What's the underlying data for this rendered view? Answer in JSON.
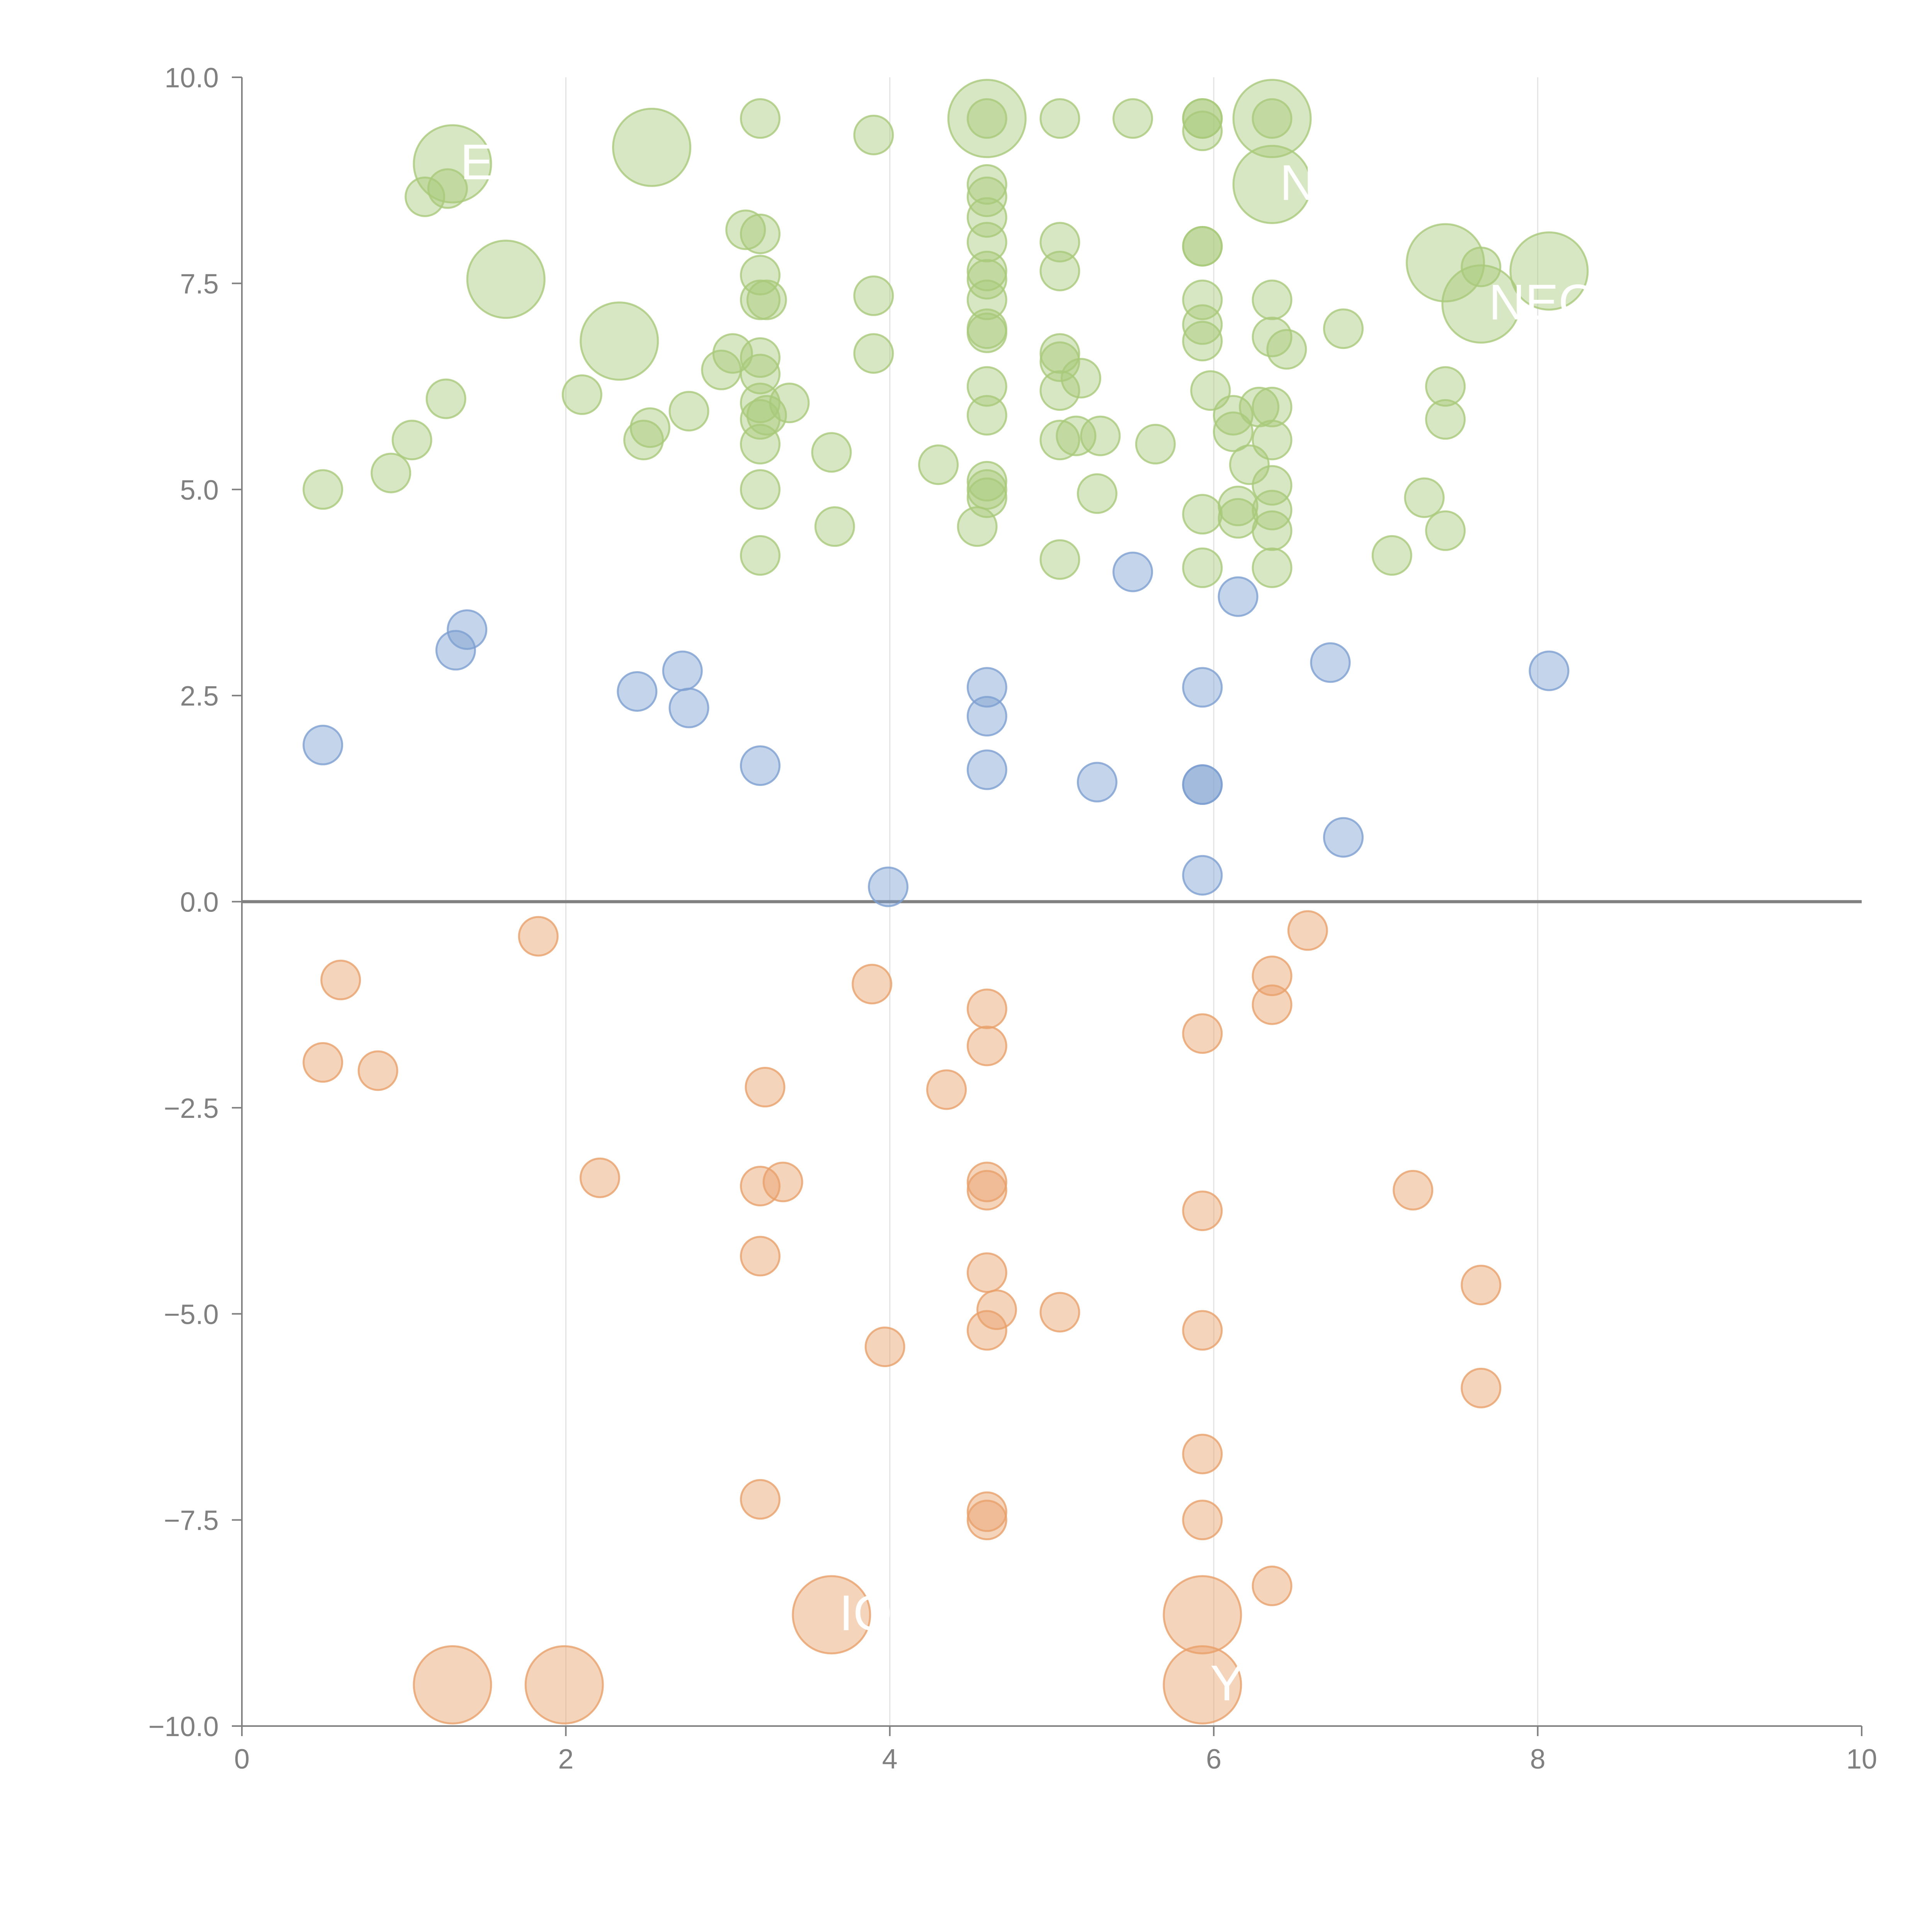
{
  "chart_data": {
    "type": "scatter",
    "title": "",
    "xlabel": "",
    "ylabel": "",
    "xlim": [
      0,
      10
    ],
    "ylim": [
      -10,
      10
    ],
    "x_ticks": [
      "0",
      "2",
      "4",
      "6",
      "8",
      "10"
    ],
    "y_ticks": [
      "−10.0",
      "−7.5",
      "−5.0",
      "−2.5",
      "0.0",
      "2.5",
      "5.0",
      "7.5",
      "10.0"
    ],
    "grid": "vertical gridlines at x ticks",
    "zero_line": true,
    "legend": "none",
    "colors": {
      "high": "#a9c97a",
      "mid": "#7d9fd1",
      "low": "#e8a06a",
      "axis": "#808080",
      "grid": "#e3e3e3",
      "zero_line": "#808080"
    },
    "series": [
      {
        "group": "high",
        "points": [
          {
            "x": 0.5,
            "y": 5.0
          },
          {
            "x": 0.92,
            "y": 5.2
          },
          {
            "x": 1.05,
            "y": 5.6
          },
          {
            "x": 1.26,
            "y": 6.1
          },
          {
            "x": 1.13,
            "y": 8.55
          },
          {
            "x": 1.27,
            "y": 8.65
          },
          {
            "x": 1.3,
            "y": 8.95,
            "size": "large",
            "label": "E"
          },
          {
            "x": 1.63,
            "y": 7.55,
            "size": "large"
          },
          {
            "x": 2.1,
            "y": 6.15
          },
          {
            "x": 2.33,
            "y": 6.8,
            "size": "large"
          },
          {
            "x": 2.48,
            "y": 5.6
          },
          {
            "x": 2.52,
            "y": 5.75
          },
          {
            "x": 2.53,
            "y": 9.15,
            "size": "large"
          },
          {
            "x": 2.76,
            "y": 5.95
          },
          {
            "x": 2.96,
            "y": 6.45
          },
          {
            "x": 3.03,
            "y": 6.65
          },
          {
            "x": 3.11,
            "y": 8.15
          },
          {
            "x": 3.2,
            "y": 9.5
          },
          {
            "x": 3.2,
            "y": 8.1
          },
          {
            "x": 3.2,
            "y": 7.6
          },
          {
            "x": 3.2,
            "y": 7.3
          },
          {
            "x": 3.2,
            "y": 6.6
          },
          {
            "x": 3.2,
            "y": 6.4
          },
          {
            "x": 3.2,
            "y": 6.05
          },
          {
            "x": 3.2,
            "y": 5.85
          },
          {
            "x": 3.2,
            "y": 5.55
          },
          {
            "x": 3.2,
            "y": 5.0
          },
          {
            "x": 3.2,
            "y": 4.2
          },
          {
            "x": 3.24,
            "y": 7.3
          },
          {
            "x": 3.24,
            "y": 5.9
          },
          {
            "x": 3.38,
            "y": 6.05
          },
          {
            "x": 3.64,
            "y": 5.45
          },
          {
            "x": 3.66,
            "y": 4.55
          },
          {
            "x": 3.9,
            "y": 9.3
          },
          {
            "x": 3.9,
            "y": 7.35
          },
          {
            "x": 3.9,
            "y": 6.65
          },
          {
            "x": 4.3,
            "y": 5.3
          },
          {
            "x": 4.54,
            "y": 4.55
          },
          {
            "x": 4.6,
            "y": 9.5,
            "size": "large"
          },
          {
            "x": 4.6,
            "y": 9.5
          },
          {
            "x": 4.6,
            "y": 8.7
          },
          {
            "x": 4.6,
            "y": 8.55
          },
          {
            "x": 4.6,
            "y": 8.3
          },
          {
            "x": 4.6,
            "y": 8.0
          },
          {
            "x": 4.6,
            "y": 7.65
          },
          {
            "x": 4.6,
            "y": 7.55
          },
          {
            "x": 4.6,
            "y": 7.3
          },
          {
            "x": 4.6,
            "y": 6.95
          },
          {
            "x": 4.6,
            "y": 6.9
          },
          {
            "x": 4.6,
            "y": 6.25
          },
          {
            "x": 4.6,
            "y": 5.9
          },
          {
            "x": 4.6,
            "y": 5.1
          },
          {
            "x": 4.6,
            "y": 5.0
          },
          {
            "x": 4.6,
            "y": 4.9
          },
          {
            "x": 5.05,
            "y": 9.5
          },
          {
            "x": 5.05,
            "y": 8.0
          },
          {
            "x": 5.05,
            "y": 7.65
          },
          {
            "x": 5.05,
            "y": 6.65
          },
          {
            "x": 5.05,
            "y": 6.55
          },
          {
            "x": 5.05,
            "y": 6.2
          },
          {
            "x": 5.05,
            "y": 5.6
          },
          {
            "x": 5.05,
            "y": 4.15
          },
          {
            "x": 5.15,
            "y": 5.65
          },
          {
            "x": 5.18,
            "y": 6.35
          },
          {
            "x": 5.28,
            "y": 4.95
          },
          {
            "x": 5.3,
            "y": 5.65
          },
          {
            "x": 5.5,
            "y": 9.5
          },
          {
            "x": 5.64,
            "y": 5.55
          },
          {
            "x": 5.93,
            "y": 9.5
          },
          {
            "x": 5.93,
            "y": 9.5
          },
          {
            "x": 5.93,
            "y": 9.35
          },
          {
            "x": 5.93,
            "y": 7.95
          },
          {
            "x": 5.93,
            "y": 7.95
          },
          {
            "x": 5.93,
            "y": 7.3
          },
          {
            "x": 5.93,
            "y": 7.0
          },
          {
            "x": 5.93,
            "y": 6.8
          },
          {
            "x": 5.93,
            "y": 4.7
          },
          {
            "x": 5.93,
            "y": 4.05
          },
          {
            "x": 5.98,
            "y": 6.2
          },
          {
            "x": 6.12,
            "y": 5.9
          },
          {
            "x": 6.12,
            "y": 5.7
          },
          {
            "x": 6.15,
            "y": 4.8
          },
          {
            "x": 6.15,
            "y": 4.65
          },
          {
            "x": 6.22,
            "y": 5.3
          },
          {
            "x": 6.28,
            "y": 6.0
          },
          {
            "x": 6.36,
            "y": 9.5,
            "size": "large"
          },
          {
            "x": 6.36,
            "y": 9.5
          },
          {
            "x": 6.36,
            "y": 8.7,
            "size": "large",
            "label": "N"
          },
          {
            "x": 6.36,
            "y": 7.3
          },
          {
            "x": 6.36,
            "y": 6.85
          },
          {
            "x": 6.36,
            "y": 6.0
          },
          {
            "x": 6.36,
            "y": 5.6
          },
          {
            "x": 6.36,
            "y": 5.05
          },
          {
            "x": 6.36,
            "y": 4.75
          },
          {
            "x": 6.36,
            "y": 4.5
          },
          {
            "x": 6.36,
            "y": 4.05
          },
          {
            "x": 6.45,
            "y": 6.7
          },
          {
            "x": 6.8,
            "y": 6.95
          },
          {
            "x": 7.1,
            "y": 4.2
          },
          {
            "x": 7.3,
            "y": 4.9
          },
          {
            "x": 7.43,
            "y": 6.25
          },
          {
            "x": 7.43,
            "y": 5.85
          },
          {
            "x": 7.43,
            "y": 4.5
          },
          {
            "x": 7.43,
            "y": 7.75,
            "size": "large"
          },
          {
            "x": 7.65,
            "y": 7.7
          },
          {
            "x": 7.65,
            "y": 7.25,
            "size": "large",
            "label": "NEO"
          },
          {
            "x": 8.07,
            "y": 7.65,
            "size": "large"
          }
        ]
      },
      {
        "group": "mid",
        "points": [
          {
            "x": 0.5,
            "y": 1.9
          },
          {
            "x": 1.32,
            "y": 3.05
          },
          {
            "x": 1.39,
            "y": 3.3
          },
          {
            "x": 2.44,
            "y": 2.55
          },
          {
            "x": 2.72,
            "y": 2.8
          },
          {
            "x": 2.76,
            "y": 2.35
          },
          {
            "x": 3.2,
            "y": 1.65
          },
          {
            "x": 3.99,
            "y": 0.18
          },
          {
            "x": 4.6,
            "y": 2.6
          },
          {
            "x": 4.6,
            "y": 2.25
          },
          {
            "x": 4.6,
            "y": 1.6
          },
          {
            "x": 5.28,
            "y": 1.45
          },
          {
            "x": 5.5,
            "y": 4.0
          },
          {
            "x": 5.93,
            "y": 2.6
          },
          {
            "x": 5.93,
            "y": 1.42
          },
          {
            "x": 5.93,
            "y": 1.42
          },
          {
            "x": 5.93,
            "y": 0.32
          },
          {
            "x": 6.15,
            "y": 3.7
          },
          {
            "x": 6.72,
            "y": 2.9
          },
          {
            "x": 6.8,
            "y": 0.78
          },
          {
            "x": 8.07,
            "y": 2.8
          }
        ]
      },
      {
        "group": "low",
        "points": [
          {
            "x": 0.5,
            "y": -1.95
          },
          {
            "x": 0.61,
            "y": -0.95
          },
          {
            "x": 0.84,
            "y": -2.05
          },
          {
            "x": 1.3,
            "y": -9.5,
            "size": "large"
          },
          {
            "x": 1.83,
            "y": -0.42
          },
          {
            "x": 1.99,
            "y": -9.5,
            "size": "large"
          },
          {
            "x": 2.21,
            "y": -3.35
          },
          {
            "x": 3.2,
            "y": -3.45
          },
          {
            "x": 3.2,
            "y": -4.3
          },
          {
            "x": 3.2,
            "y": -7.25
          },
          {
            "x": 3.23,
            "y": -2.25
          },
          {
            "x": 3.34,
            "y": -3.4
          },
          {
            "x": 3.64,
            "y": -8.65,
            "size": "large",
            "label": "IO"
          },
          {
            "x": 3.89,
            "y": -1.0
          },
          {
            "x": 3.97,
            "y": -5.4
          },
          {
            "x": 4.35,
            "y": -2.28
          },
          {
            "x": 4.6,
            "y": -1.3
          },
          {
            "x": 4.6,
            "y": -1.75
          },
          {
            "x": 4.6,
            "y": -3.4
          },
          {
            "x": 4.6,
            "y": -3.5
          },
          {
            "x": 4.6,
            "y": -4.5
          },
          {
            "x": 4.6,
            "y": -5.2
          },
          {
            "x": 4.6,
            "y": -7.4
          },
          {
            "x": 4.6,
            "y": -7.5
          },
          {
            "x": 4.66,
            "y": -4.95
          },
          {
            "x": 5.05,
            "y": -4.98
          },
          {
            "x": 5.93,
            "y": -1.6
          },
          {
            "x": 5.93,
            "y": -3.75
          },
          {
            "x": 5.93,
            "y": -5.2
          },
          {
            "x": 5.93,
            "y": -6.7
          },
          {
            "x": 5.93,
            "y": -7.5
          },
          {
            "x": 5.93,
            "y": -8.65,
            "size": "large"
          },
          {
            "x": 5.93,
            "y": -9.5,
            "size": "large",
            "label": "Y"
          },
          {
            "x": 6.36,
            "y": -0.9
          },
          {
            "x": 6.36,
            "y": -1.25
          },
          {
            "x": 6.36,
            "y": -8.3
          },
          {
            "x": 6.58,
            "y": -0.35
          },
          {
            "x": 7.23,
            "y": -3.5
          },
          {
            "x": 7.65,
            "y": -4.65
          },
          {
            "x": 7.65,
            "y": -5.9
          }
        ]
      }
    ]
  }
}
